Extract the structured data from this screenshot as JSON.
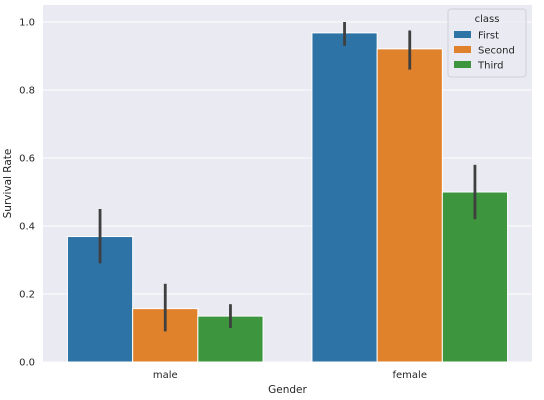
{
  "chart_data": {
    "type": "bar",
    "categories": [
      "male",
      "female"
    ],
    "series": [
      {
        "name": "First",
        "color": "#2e73a6",
        "values": [
          0.369,
          0.968
        ],
        "ci": [
          [
            0.29,
            0.45
          ],
          [
            0.93,
            1.0
          ]
        ]
      },
      {
        "name": "Second",
        "color": "#e0812c",
        "values": [
          0.157,
          0.921
        ],
        "ci": [
          [
            0.09,
            0.23
          ],
          [
            0.86,
            0.975
          ]
        ]
      },
      {
        "name": "Third",
        "color": "#3d953e",
        "values": [
          0.135,
          0.5
        ],
        "ci": [
          [
            0.1,
            0.17
          ],
          [
            0.42,
            0.58
          ]
        ]
      }
    ],
    "xlabel": "Gender",
    "ylabel": "Survival Rate",
    "ylim": [
      0,
      1.05
    ],
    "yticks": [
      0.0,
      0.2,
      0.4,
      0.6,
      0.8,
      1.0
    ],
    "ytick_labels": [
      "0.0",
      "0.2",
      "0.4",
      "0.6",
      "0.8",
      "1.0"
    ],
    "grid": true,
    "legend": {
      "title": "class",
      "placement": "top-right"
    },
    "style": {
      "background": "#eaeaf2",
      "grid_color": "#ffffff",
      "errorbar_color": "#3f3f3f"
    }
  }
}
